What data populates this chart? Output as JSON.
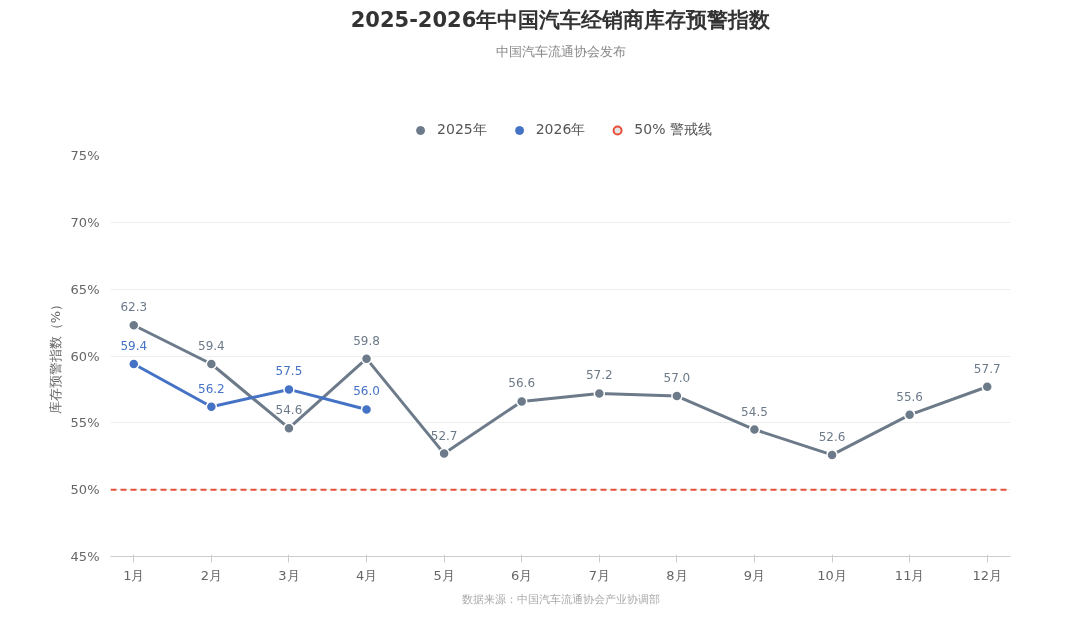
{
  "chart_data": {
    "type": "line",
    "title": "2025-2026年中国汽车经销商库存预警指数",
    "subtitle": "中国汽车流通协会发布",
    "ylabel": "库存预警指数（%）",
    "categories": [
      "1月",
      "2月",
      "3月",
      "4月",
      "5月",
      "6月",
      "7月",
      "8月",
      "9月",
      "10月",
      "11月",
      "12月"
    ],
    "series": [
      {
        "name": "2025年",
        "color": "#6c7a89",
        "values": [
          62.3,
          59.4,
          54.6,
          59.8,
          52.7,
          56.6,
          57.2,
          57.0,
          54.5,
          52.6,
          55.6,
          57.7
        ],
        "value_labels": [
          "62.3",
          "59.4",
          "54.6",
          "59.8",
          "52.7",
          "56.6",
          "57.2",
          "57.0",
          "54.5",
          "52.6",
          "55.6",
          "57.7"
        ]
      },
      {
        "name": "2026年",
        "color": "#4472c4",
        "values": [
          59.4,
          56.2,
          57.5,
          56.0,
          null,
          null,
          null,
          null,
          null,
          null,
          null,
          null
        ],
        "value_labels": [
          "59.4",
          "56.2",
          "57.5",
          "56.0",
          null,
          null,
          null,
          null,
          null,
          null,
          null,
          null
        ]
      }
    ],
    "ylim": [
      45,
      75
    ],
    "yticks": [
      {
        "value": 45,
        "label": "45%"
      },
      {
        "value": 50,
        "label": "50%"
      },
      {
        "value": 55,
        "label": "55%"
      },
      {
        "value": 60,
        "label": "60%"
      },
      {
        "value": 65,
        "label": "65%"
      },
      {
        "value": 70,
        "label": "70%"
      },
      {
        "value": 75,
        "label": "75%"
      }
    ],
    "ref_lines": [
      {
        "axis": "y",
        "value": 50,
        "label": "50% 警戒线",
        "color": "#e8503a",
        "line_style": "dashed"
      }
    ],
    "annotations": [
      "数据来源：中国汽车流通协会产业协调部"
    ],
    "grid": "y",
    "legend": "top",
    "marker": "circle",
    "line_style": "solid"
  }
}
